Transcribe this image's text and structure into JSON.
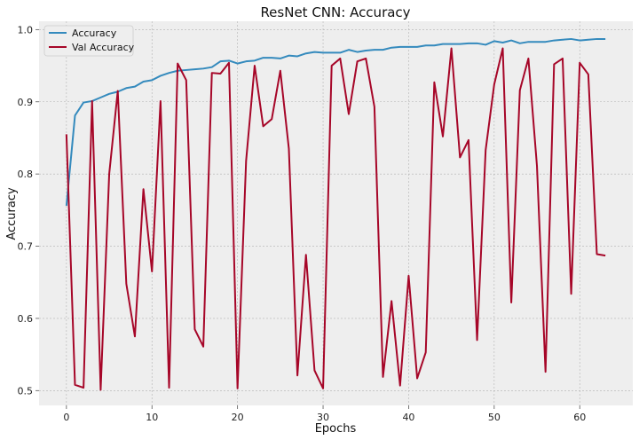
{
  "chart_data": {
    "type": "line",
    "title": "ResNet CNN: Accuracy",
    "xlabel": "Epochs",
    "ylabel": "Accuracy",
    "xlim": [
      -3.2,
      66.2
    ],
    "ylim": [
      0.4795,
      1.0115
    ],
    "xticks": [
      0,
      10,
      20,
      30,
      40,
      50,
      60
    ],
    "yticks": [
      0.5,
      0.6,
      0.7,
      0.8,
      0.9,
      1.0
    ],
    "ytick_labels": [
      "0.5",
      "0.6",
      "0.7",
      "0.8",
      "0.9",
      "1.0"
    ],
    "grid": true,
    "legend_position": "top-left",
    "series": [
      {
        "name": "Accuracy",
        "color": "#348ABD",
        "values": [
          0.756,
          0.881,
          0.899,
          0.901,
          0.906,
          0.911,
          0.914,
          0.919,
          0.921,
          0.928,
          0.93,
          0.936,
          0.94,
          0.943,
          0.944,
          0.945,
          0.946,
          0.948,
          0.956,
          0.957,
          0.953,
          0.956,
          0.957,
          0.961,
          0.961,
          0.96,
          0.964,
          0.963,
          0.967,
          0.969,
          0.968,
          0.968,
          0.968,
          0.972,
          0.969,
          0.971,
          0.972,
          0.972,
          0.975,
          0.976,
          0.976,
          0.976,
          0.978,
          0.978,
          0.98,
          0.98,
          0.98,
          0.981,
          0.981,
          0.979,
          0.984,
          0.982,
          0.985,
          0.981,
          0.983,
          0.983,
          0.983,
          0.985,
          0.986,
          0.987,
          0.985,
          0.986,
          0.987,
          0.987
        ]
      },
      {
        "name": "Val Accuracy",
        "color": "#A60628",
        "values": [
          0.855,
          0.508,
          0.504,
          0.901,
          0.501,
          0.8,
          0.915,
          0.648,
          0.575,
          0.779,
          0.665,
          0.901,
          0.504,
          0.953,
          0.93,
          0.585,
          0.561,
          0.94,
          0.939,
          0.954,
          0.503,
          0.818,
          0.95,
          0.866,
          0.876,
          0.943,
          0.835,
          0.521,
          0.688,
          0.528,
          0.503,
          0.95,
          0.96,
          0.883,
          0.956,
          0.96,
          0.893,
          0.519,
          0.624,
          0.507,
          0.659,
          0.517,
          0.553,
          0.927,
          0.852,
          0.974,
          0.823,
          0.847,
          0.57,
          0.833,
          0.924,
          0.974,
          0.622,
          0.916,
          0.96,
          0.811,
          0.526,
          0.952,
          0.96,
          0.634,
          0.954,
          0.938,
          0.689,
          0.687
        ]
      }
    ]
  }
}
